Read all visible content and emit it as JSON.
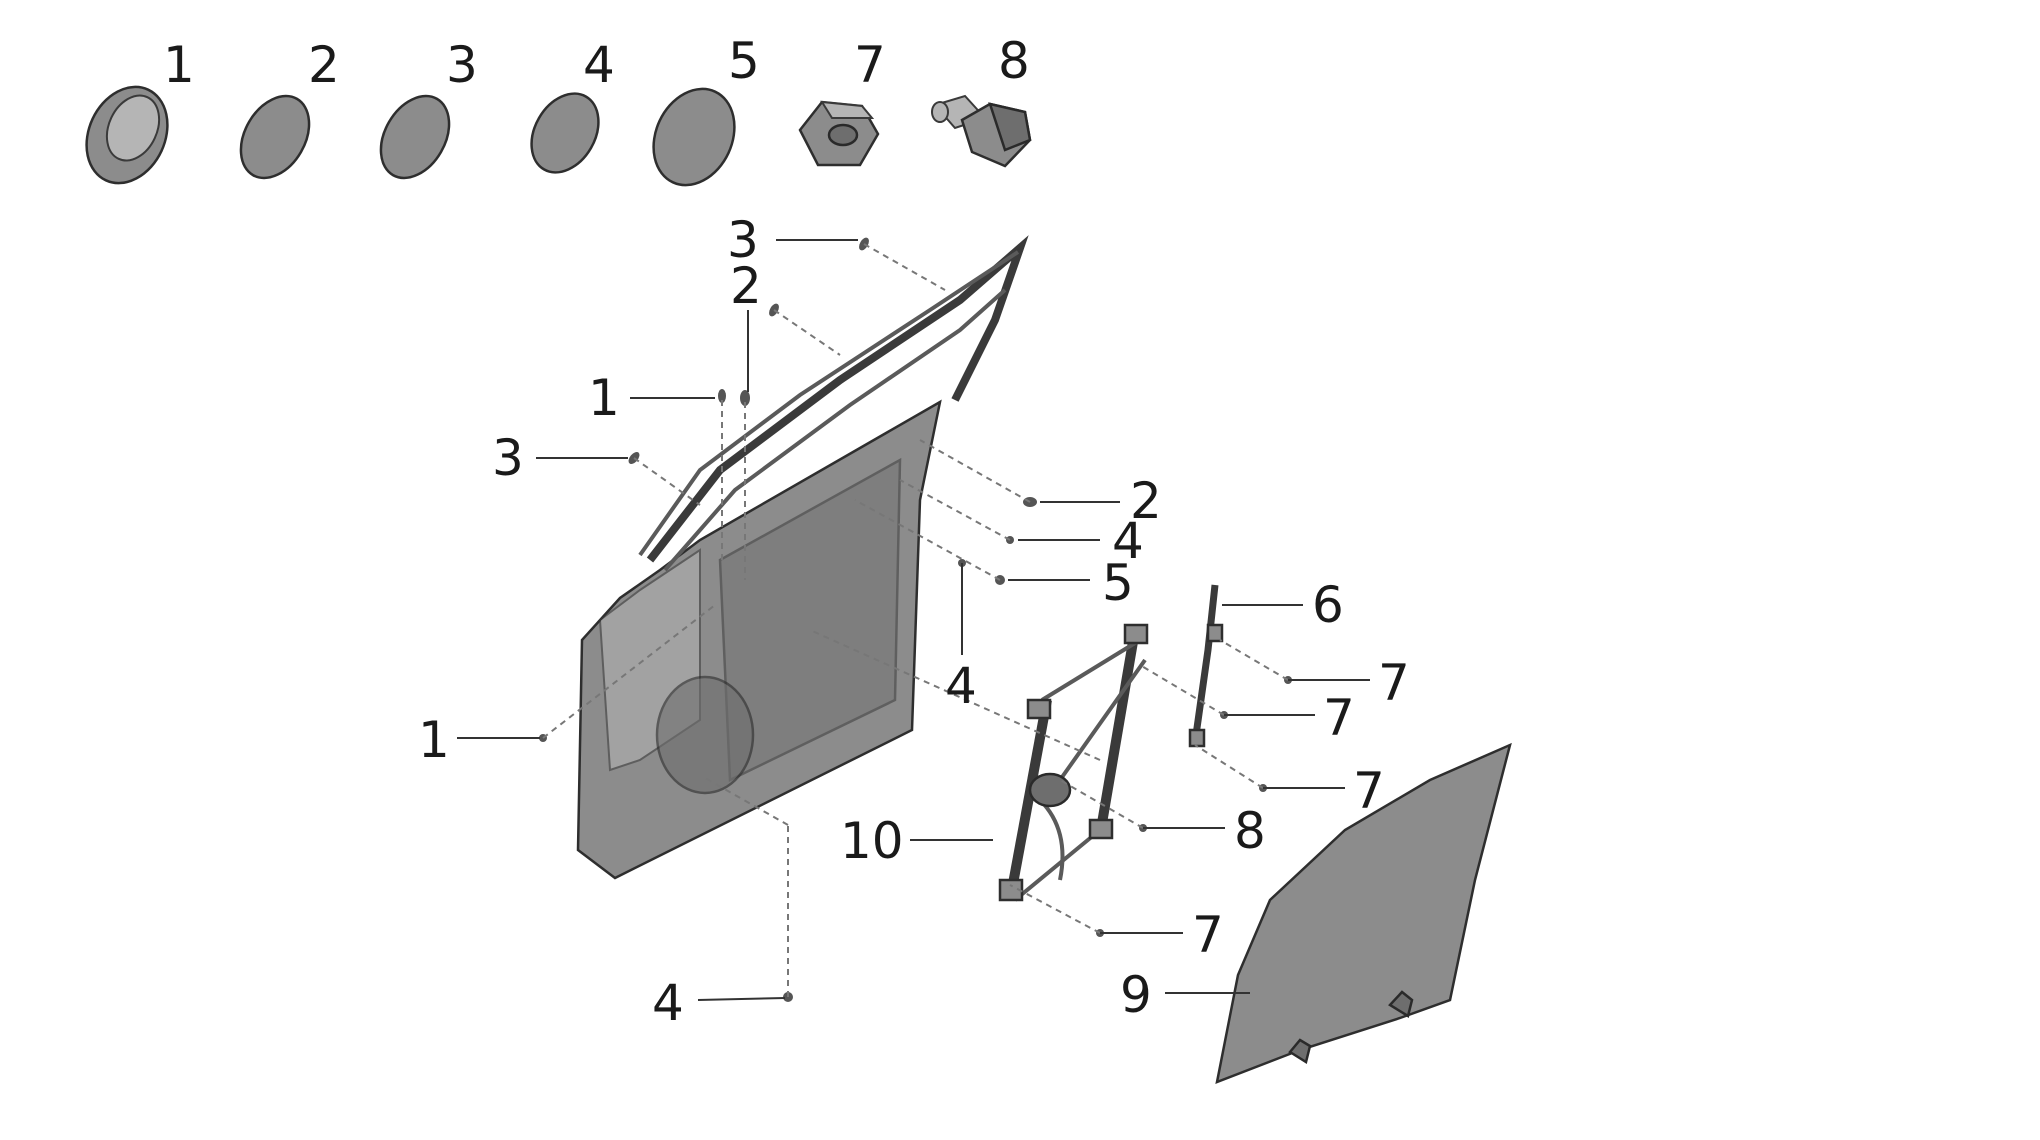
{
  "legend_items": [
    {
      "number": "1",
      "icon": "plug-1-icon"
    },
    {
      "number": "2",
      "icon": "plug-2-icon"
    },
    {
      "number": "3",
      "icon": "plug-3-icon"
    },
    {
      "number": "4",
      "icon": "plug-4-icon"
    },
    {
      "number": "5",
      "icon": "plug-5-icon"
    },
    {
      "number": "7",
      "icon": "nut-icon"
    },
    {
      "number": "8",
      "icon": "bolt-icon"
    }
  ],
  "callouts": {
    "c3_top": "3",
    "c2_top": "2",
    "c1_upper": "1",
    "c3_left": "3",
    "c2_right": "2",
    "c4_right": "4",
    "c5_right": "5",
    "c6": "6",
    "c7_a": "7",
    "c7_b": "7",
    "c7_c": "7",
    "c4_mid": "4",
    "c1_lower": "1",
    "c8": "8",
    "c10": "10",
    "c7_d": "7",
    "c9": "9",
    "c4_bottom": "4"
  },
  "colors": {
    "part_fill": "#8c8c8c",
    "line": "#333333"
  }
}
